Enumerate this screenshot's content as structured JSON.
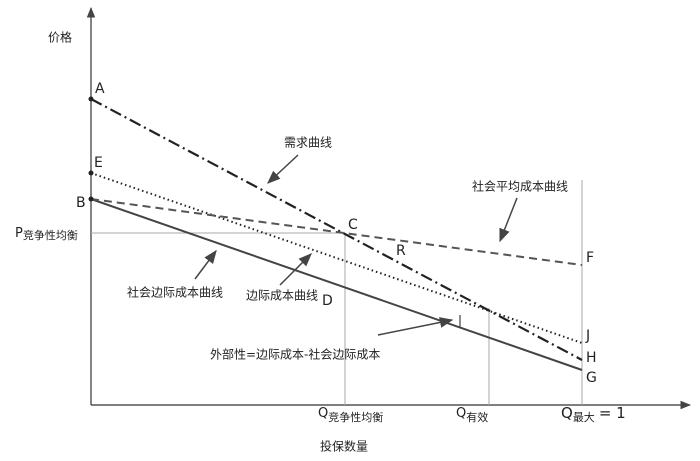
{
  "axis_labels": {
    "y": "价格",
    "x": "投保数量"
  },
  "points": {
    "A": "A",
    "E": "E",
    "B": "B",
    "C": "C",
    "R": "R",
    "D": "D",
    "F": "F",
    "J": "J",
    "H": "H",
    "G": "G"
  },
  "price_label": {
    "main": "P",
    "sub": "竞争性均衡"
  },
  "quantity_labels": [
    {
      "main": "Q",
      "sub": "竞争性均衡"
    },
    {
      "main": "Q",
      "sub": "有效"
    },
    {
      "main": "Q",
      "sub": "最大",
      "suffix": "= 1"
    }
  ],
  "curve_labels": {
    "demand": "需求曲线",
    "social_average_cost": "社会平均成本曲线",
    "social_marginal_cost": "社会边际成本曲线",
    "marginal_cost": "边际成本曲线"
  },
  "annotation": "外部性=边际成本-社会边际成本"
}
